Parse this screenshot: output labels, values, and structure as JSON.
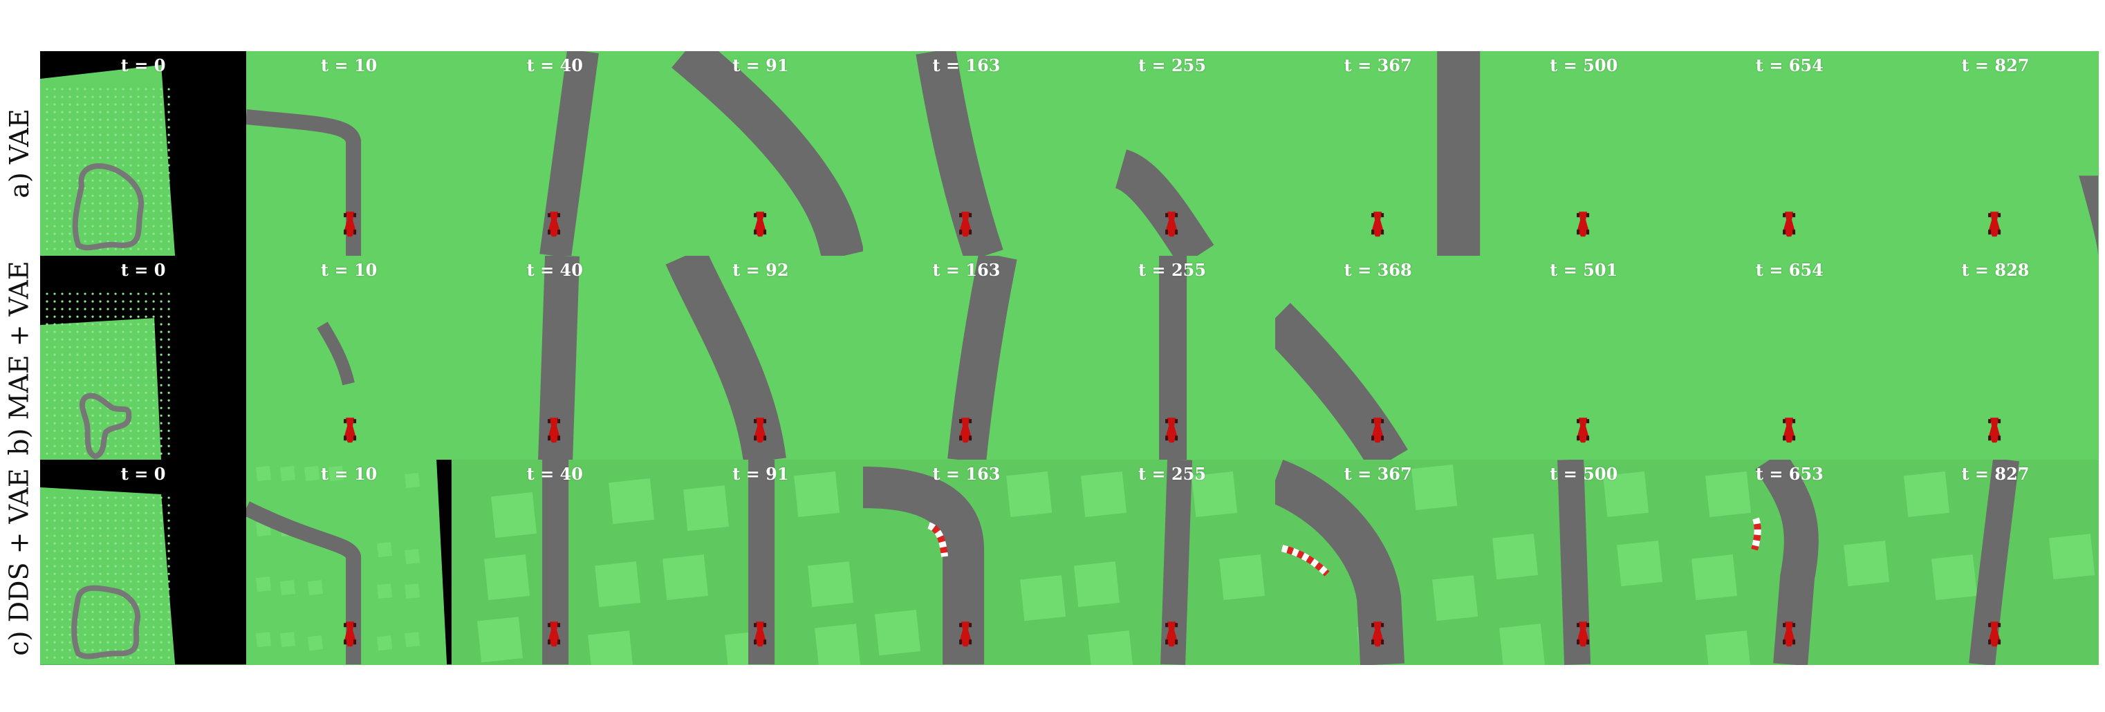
{
  "figure": {
    "rows": [
      {
        "label": "a) VAE",
        "model": "vae",
        "frames": [
          {
            "t": "t = 0"
          },
          {
            "t": "t = 10"
          },
          {
            "t": "t = 40"
          },
          {
            "t": "t = 91"
          },
          {
            "t": "t = 163"
          },
          {
            "t": "t = 255"
          },
          {
            "t": "t = 367"
          },
          {
            "t": "t = 500"
          },
          {
            "t": "t = 654"
          },
          {
            "t": "t = 827"
          }
        ]
      },
      {
        "label": "b) MAE + VAE",
        "model": "mae-vae",
        "frames": [
          {
            "t": "t = 0"
          },
          {
            "t": "t = 10"
          },
          {
            "t": "t = 40"
          },
          {
            "t": "t = 92"
          },
          {
            "t": "t = 163"
          },
          {
            "t": "t = 255"
          },
          {
            "t": "t = 368"
          },
          {
            "t": "t = 501"
          },
          {
            "t": "t = 654"
          },
          {
            "t": "t = 828"
          }
        ]
      },
      {
        "label": "c) DDS + VAE",
        "model": "dds-vae",
        "frames": [
          {
            "t": "t = 0"
          },
          {
            "t": "t = 10"
          },
          {
            "t": "t = 40"
          },
          {
            "t": "t = 91"
          },
          {
            "t": "t = 163"
          },
          {
            "t": "t = 255"
          },
          {
            "t": "t = 367"
          },
          {
            "t": "t = 500"
          },
          {
            "t": "t = 653"
          },
          {
            "t": "t = 827"
          }
        ]
      }
    ],
    "colors": {
      "grass": "#63d163",
      "grass_light": "#70dc70",
      "road": "#6b6b6b",
      "car": "#cc1010",
      "background": "#000000",
      "label_text": "#ffffff"
    }
  }
}
